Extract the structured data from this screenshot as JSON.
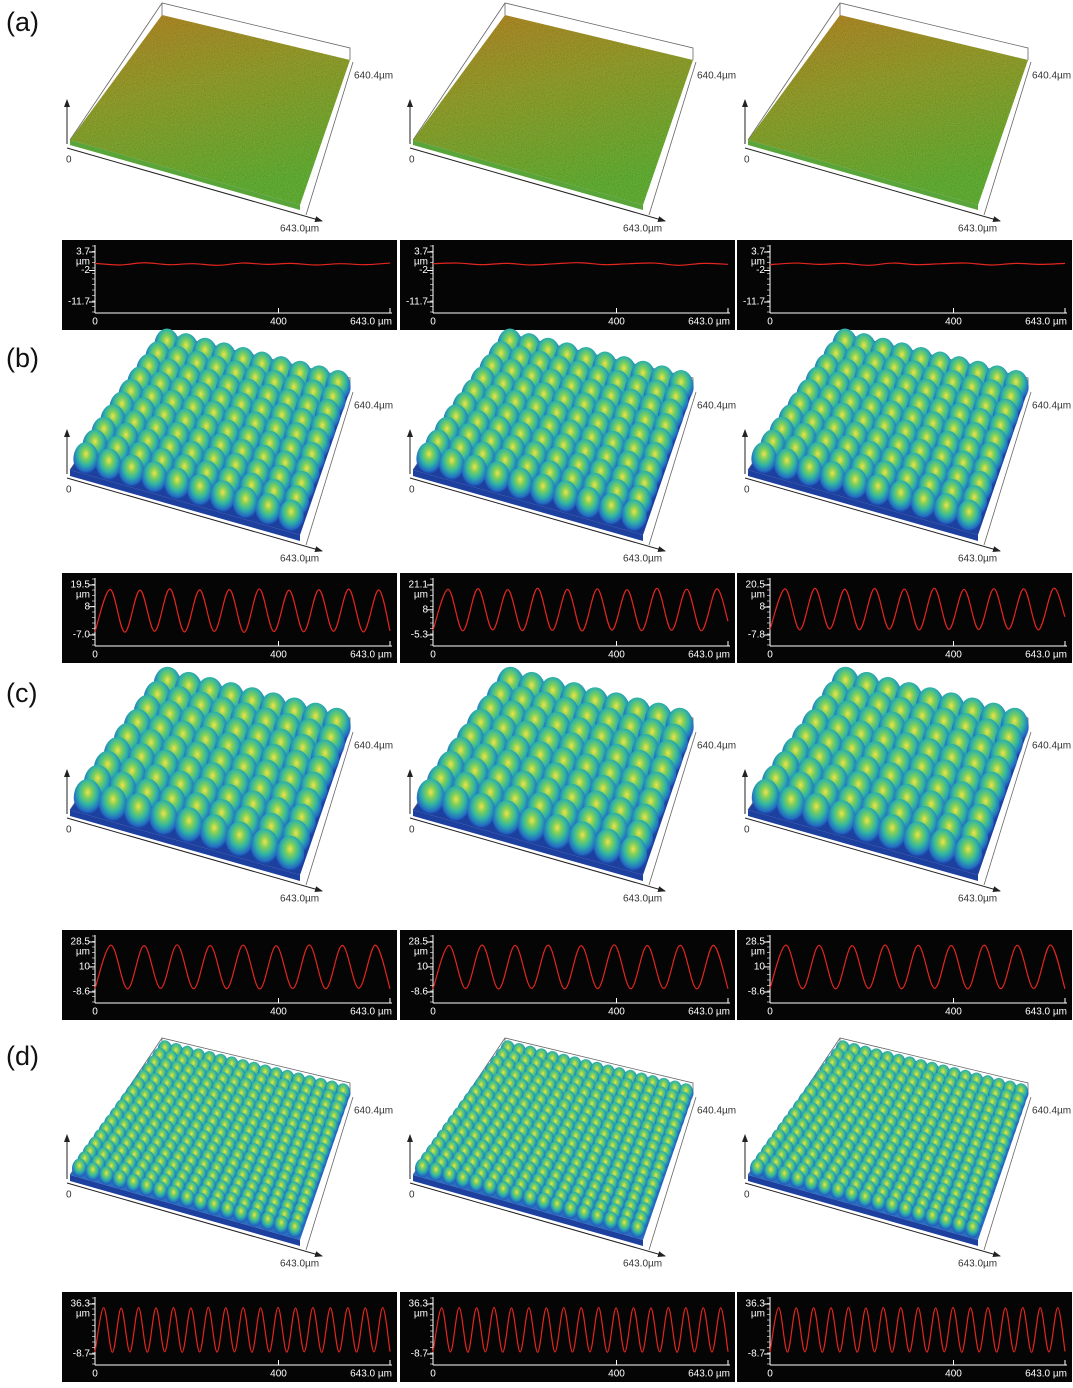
{
  "rows": [
    {
      "label": "(a)",
      "panels": [
        {
          "surface": {
            "y_label": "640.4µm",
            "origin": "0",
            "x_label": "643.0µm"
          },
          "profile": {
            "type": "line",
            "color": "#e3261f",
            "xlim": [
              0,
              643
            ],
            "xticks": [
              0,
              400,
              {
                "value": 643.0,
                "label": "643.0 µm"
              }
            ],
            "ylim": [
              -11.7,
              3.7
            ],
            "yticks": [
              3.7,
              -2,
              -11.7
            ],
            "y_unit": "µm",
            "x": [
              0,
              54,
              107,
              161,
              214,
              268,
              321,
              375,
              428,
              482,
              536,
              589,
              643
            ],
            "values": [
              0.2,
              -0.3,
              0.4,
              -0.2,
              0.1,
              -0.4,
              0.3,
              -0.1,
              0.2,
              -0.3,
              0.1,
              -0.2,
              0.3
            ]
          }
        },
        {
          "surface": {
            "y_label": "640.4µm",
            "origin": "0",
            "x_label": "643.0µm"
          },
          "profile": {
            "type": "line",
            "color": "#e3261f",
            "xlim": [
              0,
              643
            ],
            "xticks": [
              0,
              400,
              {
                "value": 643.0,
                "label": "643.0 µm"
              }
            ],
            "ylim": [
              -11.7,
              3.7
            ],
            "yticks": [
              3.7,
              -2,
              -11.7
            ],
            "y_unit": "µm",
            "x": [
              0,
              54,
              107,
              161,
              214,
              268,
              321,
              375,
              428,
              482,
              536,
              589,
              643
            ],
            "values": [
              0.1,
              0.3,
              -0.2,
              0.2,
              -0.3,
              0.1,
              0.4,
              -0.2,
              0.1,
              0.3,
              -0.4,
              0.2,
              -0.1
            ]
          }
        },
        {
          "surface": {
            "y_label": "640.4µm",
            "origin": "0",
            "x_label": "643.0µm"
          },
          "profile": {
            "type": "line",
            "color": "#e3261f",
            "xlim": [
              0,
              643
            ],
            "xticks": [
              0,
              400,
              {
                "value": 643.0,
                "label": "643.0 µm"
              }
            ],
            "ylim": [
              -11.7,
              3.7
            ],
            "yticks": [
              3.7,
              -2,
              -11.7
            ],
            "y_unit": "µm",
            "x": [
              0,
              54,
              107,
              161,
              214,
              268,
              321,
              375,
              428,
              482,
              536,
              589,
              643
            ],
            "values": [
              -0.2,
              0.3,
              -0.1,
              0.2,
              -0.4,
              0.3,
              -0.2,
              0.1,
              0.3,
              -0.3,
              0.2,
              -0.1,
              0.2
            ]
          }
        }
      ]
    },
    {
      "label": "(b)",
      "panels": [
        {
          "surface": {
            "y_label": "640.4µm",
            "origin": "0",
            "x_label": "643.0µm"
          },
          "profile": {
            "type": "line",
            "color": "#e3261f",
            "xlim": [
              0,
              643
            ],
            "xticks": [
              0,
              400,
              {
                "value": 643.0,
                "label": "643.0 µm"
              }
            ],
            "ylim": [
              -7.0,
              19.5
            ],
            "yticks": [
              19.5,
              8,
              {
                "value": -7.0,
                "label": "-7.0"
              }
            ],
            "y_unit": "µm",
            "x": [
              0,
              33,
              65,
              98,
              130,
              163,
              195,
              228,
              260,
              293,
              325,
              358,
              390,
              423,
              455,
              488,
              520,
              553,
              585,
              618,
              643
            ],
            "values": [
              -5.2,
              17.2,
              -5.5,
              16.8,
              -5.0,
              17.5,
              -5.4,
              16.9,
              -5.1,
              17.1,
              -5.6,
              17.4,
              -5.2,
              16.7,
              -5.3,
              17.0,
              -5.0,
              17.3,
              -5.4,
              16.9,
              -4.8
            ]
          }
        },
        {
          "surface": {
            "y_label": "640.4µm",
            "origin": "0",
            "x_label": "643.0µm"
          },
          "profile": {
            "type": "line",
            "color": "#e3261f",
            "xlim": [
              0,
              643
            ],
            "xticks": [
              0,
              400,
              {
                "value": 643.0,
                "label": "643.0 µm"
              }
            ],
            "ylim": [
              -5.3,
              21.1
            ],
            "yticks": [
              21.1,
              8,
              -5.3
            ],
            "y_unit": "µm",
            "x": [
              0,
              33,
              65,
              98,
              130,
              163,
              195,
              228,
              260,
              293,
              325,
              358,
              390,
              423,
              455,
              488,
              520,
              553,
              585,
              618,
              643
            ],
            "values": [
              -2.8,
              18.9,
              -3.1,
              19.2,
              -2.6,
              18.7,
              -3.0,
              19.4,
              -2.9,
              18.8,
              -3.2,
              19.1,
              -2.7,
              18.6,
              -3.0,
              19.3,
              -2.8,
              18.9,
              -3.1,
              19.0,
              2.0
            ]
          }
        },
        {
          "surface": {
            "y_label": "640.4µm",
            "origin": "0",
            "x_label": "643.0µm"
          },
          "profile": {
            "type": "line",
            "color": "#e3261f",
            "xlim": [
              0,
              643
            ],
            "xticks": [
              0,
              400,
              {
                "value": 643.0,
                "label": "643.0 µm"
              }
            ],
            "ylim": [
              -7.8,
              20.5
            ],
            "yticks": [
              20.5,
              8,
              -7.8
            ],
            "y_unit": "µm",
            "x": [
              0,
              33,
              65,
              98,
              130,
              163,
              195,
              228,
              260,
              293,
              325,
              358,
              390,
              423,
              455,
              488,
              520,
              553,
              585,
              618,
              643
            ],
            "values": [
              -4.6,
              18.3,
              -4.9,
              18.6,
              -4.4,
              18.1,
              -4.8,
              18.5,
              -4.5,
              18.2,
              -5.0,
              18.7,
              -4.6,
              18.0,
              -4.7,
              18.4,
              -4.5,
              18.3,
              -4.9,
              18.6,
              2.5
            ]
          }
        }
      ]
    },
    {
      "label": "(c)",
      "panels": [
        {
          "surface": {
            "y_label": "640.4µm",
            "origin": "0",
            "x_label": "643.0µm"
          },
          "profile": {
            "type": "line",
            "color": "#e3261f",
            "xlim": [
              0,
              643
            ],
            "xticks": [
              0,
              400,
              {
                "value": 643.0,
                "label": "643.0 µm"
              }
            ],
            "ylim": [
              -8.6,
              28.5
            ],
            "yticks": [
              28.5,
              10,
              -8.6
            ],
            "y_unit": "µm",
            "x": [
              0,
              35,
              71,
              107,
              143,
              179,
              215,
              251,
              287,
              323,
              359,
              395,
              431,
              467,
              503,
              539,
              575,
              611,
              643
            ],
            "values": [
              -6.0,
              26.1,
              -6.3,
              25.8,
              -5.9,
              26.4,
              -6.2,
              25.9,
              -6.1,
              26.2,
              -6.4,
              25.7,
              -6.0,
              26.3,
              -6.2,
              26.0,
              -5.8,
              26.2,
              -6.1
            ]
          }
        },
        {
          "surface": {
            "y_label": "640.4µm",
            "origin": "0",
            "x_label": "643.0µm"
          },
          "profile": {
            "type": "line",
            "color": "#e3261f",
            "xlim": [
              0,
              643
            ],
            "xticks": [
              0,
              400,
              {
                "value": 643.0,
                "label": "643.0 µm"
              }
            ],
            "ylim": [
              -8.6,
              28.5
            ],
            "yticks": [
              28.5,
              10,
              -8.6
            ],
            "y_unit": "µm",
            "x": [
              0,
              35,
              71,
              107,
              143,
              179,
              215,
              251,
              287,
              323,
              359,
              395,
              431,
              467,
              503,
              539,
              575,
              611,
              643
            ],
            "values": [
              -6.2,
              25.9,
              -6.0,
              26.3,
              -6.4,
              26.0,
              -5.9,
              26.2,
              -6.3,
              25.8,
              -6.1,
              26.4,
              -6.2,
              25.9,
              -6.0,
              26.1,
              -6.3,
              26.0,
              -6.1
            ]
          }
        },
        {
          "surface": {
            "y_label": "640.4µm",
            "origin": "0",
            "x_label": "643.0µm"
          },
          "profile": {
            "type": "line",
            "color": "#e3261f",
            "xlim": [
              0,
              643
            ],
            "xticks": [
              0,
              400,
              {
                "value": 643.0,
                "label": "643.0 µm"
              }
            ],
            "ylim": [
              -8.6,
              28.5
            ],
            "yticks": [
              28.5,
              10,
              -8.6
            ],
            "y_unit": "µm",
            "x": [
              0,
              35,
              71,
              107,
              143,
              179,
              215,
              251,
              287,
              323,
              359,
              395,
              431,
              467,
              503,
              539,
              575,
              611,
              643
            ],
            "values": [
              -5.9,
              26.2,
              -6.1,
              26.0,
              -6.3,
              25.8,
              -6.0,
              26.3,
              -6.2,
              26.1,
              -5.9,
              25.9,
              -6.3,
              26.2,
              -6.1,
              26.0,
              -6.0,
              26.3,
              -6.2
            ]
          }
        }
      ]
    },
    {
      "label": "(d)",
      "panels": [
        {
          "surface": {
            "y_label": "640.4µm",
            "origin": "0",
            "x_label": "643.0µm"
          },
          "profile": {
            "type": "line",
            "color": "#e3261f",
            "xlim": [
              0,
              643
            ],
            "xticks": [
              0,
              400,
              {
                "value": 643.0,
                "label": "643.0 µm"
              }
            ],
            "ylim": [
              -8.7,
              36.3
            ],
            "yticks": [
              36.3,
              -8.7
            ],
            "y_unit": "µm",
            "x": [
              0,
              19,
              38,
              57,
              76,
              95,
              114,
              133,
              152,
              171,
              190,
              209,
              228,
              247,
              266,
              285,
              304,
              323,
              342,
              361,
              380,
              399,
              418,
              437,
              456,
              475,
              494,
              513,
              532,
              551,
              570,
              589,
              608,
              627,
              643
            ],
            "values": [
              -6.8,
              33.0,
              -7.1,
              32.6,
              -6.9,
              33.2,
              -7.0,
              32.8,
              -6.7,
              33.1,
              -7.2,
              32.7,
              -6.9,
              33.3,
              -7.0,
              32.9,
              -6.8,
              33.0,
              -7.1,
              32.8,
              -6.9,
              33.2,
              -7.0,
              32.7,
              -6.8,
              33.1,
              -7.2,
              32.9,
              -6.9,
              33.0,
              -7.0,
              32.8,
              -6.8,
              33.1,
              -6.5
            ]
          }
        },
        {
          "surface": {
            "y_label": "640.4µm",
            "origin": "0",
            "x_label": "643.0µm"
          },
          "profile": {
            "type": "line",
            "color": "#e3261f",
            "xlim": [
              0,
              643
            ],
            "xticks": [
              0,
              400,
              {
                "value": 643.0,
                "label": "643.0 µm"
              }
            ],
            "ylim": [
              -8.7,
              36.3
            ],
            "yticks": [
              36.3,
              -8.7
            ],
            "y_unit": "µm",
            "x": [
              0,
              19,
              38,
              57,
              76,
              95,
              114,
              133,
              152,
              171,
              190,
              209,
              228,
              247,
              266,
              285,
              304,
              323,
              342,
              361,
              380,
              399,
              418,
              437,
              456,
              475,
              494,
              513,
              532,
              551,
              570,
              589,
              608,
              627,
              643
            ],
            "values": [
              -7.0,
              32.8,
              -6.9,
              33.1,
              -7.1,
              32.9,
              -6.8,
              33.2,
              -7.0,
              32.7,
              -6.9,
              33.0,
              -7.2,
              32.8,
              -6.9,
              33.1,
              -7.0,
              32.9,
              -6.8,
              33.2,
              -7.1,
              32.8,
              -6.9,
              33.0,
              -7.0,
              32.7,
              -6.8,
              33.1,
              -7.1,
              32.9,
              -6.9,
              33.0,
              -7.0,
              32.8,
              -6.6
            ]
          }
        },
        {
          "surface": {
            "y_label": "640.4µm",
            "origin": "0",
            "x_label": "643.0µm"
          },
          "profile": {
            "type": "line",
            "color": "#e3261f",
            "xlim": [
              0,
              643
            ],
            "xticks": [
              0,
              400,
              {
                "value": 643.0,
                "label": "643.0 µm"
              }
            ],
            "ylim": [
              -8.7,
              36.3
            ],
            "yticks": [
              36.3,
              -8.7
            ],
            "y_unit": "µm",
            "x": [
              0,
              19,
              38,
              57,
              76,
              95,
              114,
              133,
              152,
              171,
              190,
              209,
              228,
              247,
              266,
              285,
              304,
              323,
              342,
              361,
              380,
              399,
              418,
              437,
              456,
              475,
              494,
              513,
              532,
              551,
              570,
              589,
              608,
              627,
              643
            ],
            "values": [
              -6.9,
              33.1,
              -7.0,
              32.8,
              -6.8,
              33.0,
              -7.1,
              32.9,
              -6.9,
              33.2,
              -7.0,
              32.7,
              -6.8,
              33.1,
              -7.2,
              32.9,
              -6.9,
              33.0,
              -7.0,
              32.8,
              -6.8,
              33.2,
              -7.1,
              32.9,
              -6.9,
              33.0,
              -7.0,
              32.8,
              -6.8,
              33.1,
              -7.2,
              32.9,
              -6.9,
              33.0,
              -6.4
            ]
          }
        }
      ]
    }
  ]
}
